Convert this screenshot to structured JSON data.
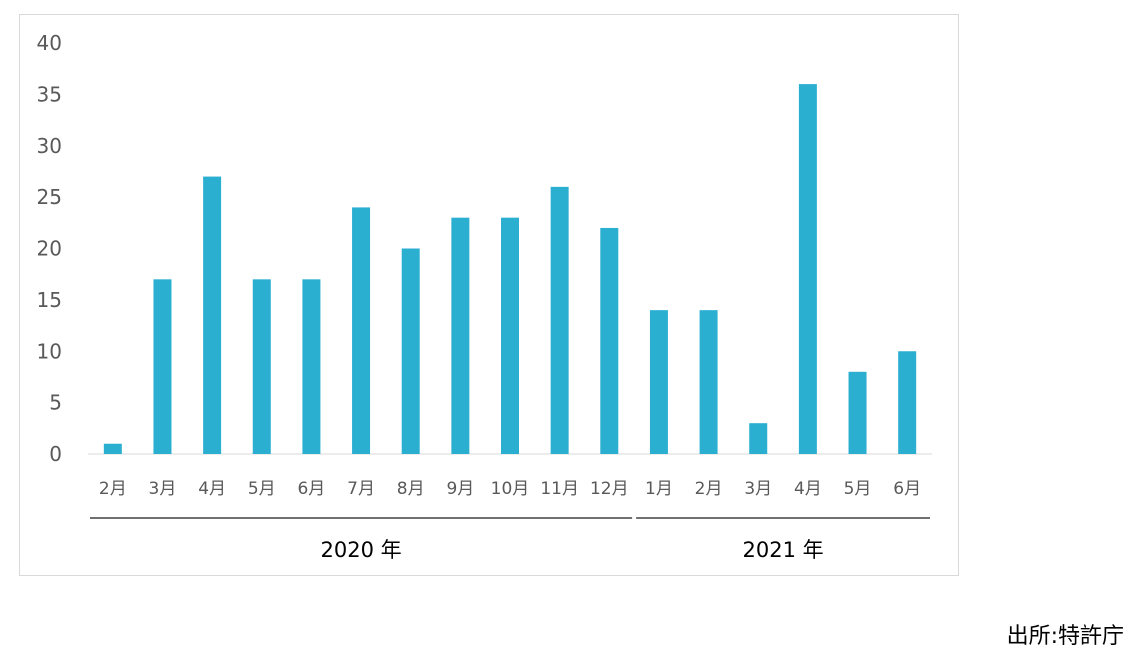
{
  "chart_data": {
    "type": "bar",
    "categories": [
      "2月",
      "3月",
      "4月",
      "5月",
      "6月",
      "7月",
      "8月",
      "9月",
      "10月",
      "11月",
      "12月",
      "1月",
      "2月",
      "3月",
      "4月",
      "5月",
      "6月"
    ],
    "values": [
      1,
      17,
      27,
      17,
      17,
      24,
      20,
      23,
      23,
      26,
      22,
      14,
      14,
      3,
      36,
      8,
      10
    ],
    "groups": [
      {
        "label": "2020 年",
        "start": 0,
        "end": 10
      },
      {
        "label": "2021 年",
        "start": 11,
        "end": 16
      }
    ],
    "yticks": [
      "0",
      "5",
      "10",
      "15",
      "20",
      "25",
      "30",
      "35",
      "40"
    ],
    "ylim": [
      0,
      40
    ],
    "grid": false,
    "legend": "none",
    "bar_color": "#2bafd1"
  },
  "source_note": "出所:特許庁"
}
